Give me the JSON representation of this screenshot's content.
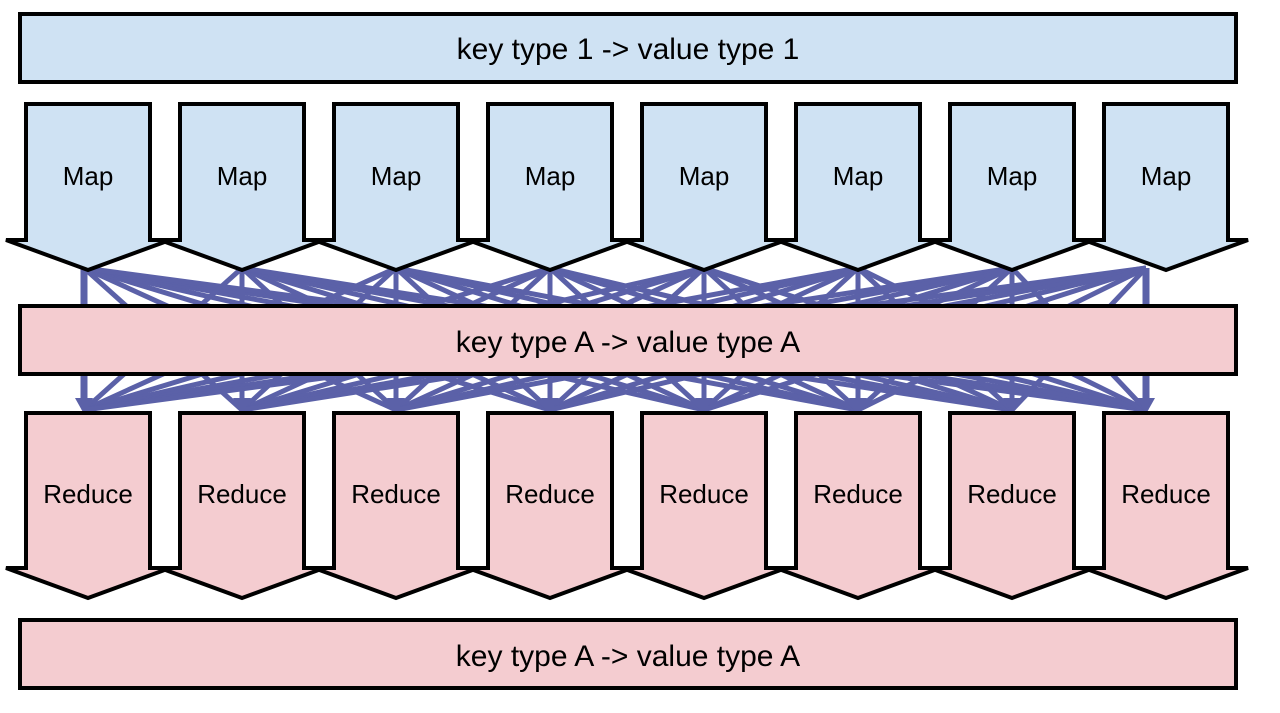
{
  "colors": {
    "map_fill": "#cfe2f3",
    "reduce_fill": "#f4ccd0",
    "outline": "#000000",
    "arrow": "#5b61a8"
  },
  "bars": {
    "input": "key type 1 -> value type 1",
    "intermediate": "key type A -> value type A",
    "output": "key type A -> value type A"
  },
  "map_nodes": [
    "Map",
    "Map",
    "Map",
    "Map",
    "Map",
    "Map",
    "Map",
    "Map"
  ],
  "reduce_nodes": [
    "Reduce",
    "Reduce",
    "Reduce",
    "Reduce",
    "Reduce",
    "Reduce",
    "Reduce",
    "Reduce"
  ]
}
